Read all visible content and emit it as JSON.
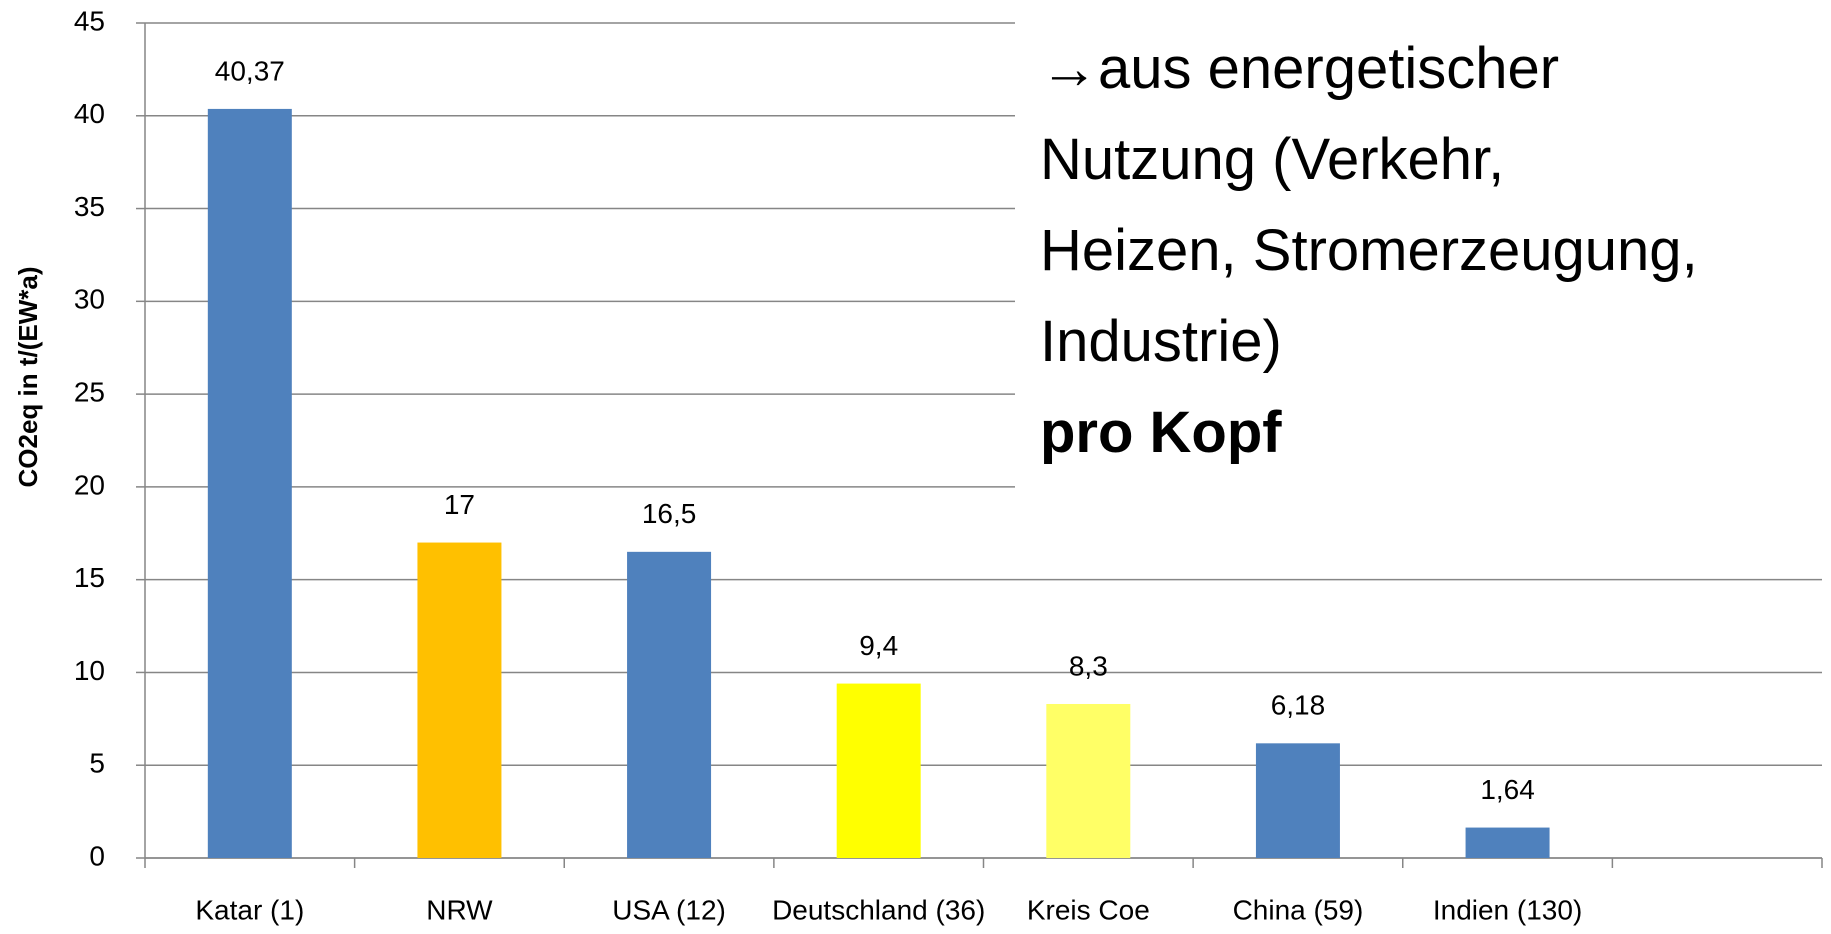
{
  "chart_data": {
    "type": "bar",
    "y_label": "CO2eq in t/(EW*a)",
    "categories": [
      "Katar (1)",
      "NRW",
      "USA (12)",
      "Deutschland (36)",
      "Kreis Coe",
      "China (59)",
      "Indien (130)",
      null
    ],
    "values": [
      40.37,
      17,
      16.5,
      9.4,
      8.3,
      6.18,
      1.64,
      null
    ],
    "value_labels": [
      "40,37",
      "17",
      "16,5",
      "9,4",
      "8,3",
      "6,18",
      "1,64",
      null
    ],
    "colors": [
      "#4f81bd",
      "#ffc000",
      "#4f81bd",
      "#ffff00",
      "#ffff66",
      "#4f81bd",
      "#4f81bd",
      null
    ],
    "ylim": [
      0,
      45
    ],
    "yticks": [
      0,
      5,
      10,
      15,
      20,
      25,
      30,
      35,
      40,
      45
    ],
    "grid": true,
    "annotation": [
      "→aus energetischer",
      "Nutzung (Verkehr,",
      "Heizen, Stromerzeugung,",
      "Industrie)"
    ],
    "annotation_bold": "pro Kopf"
  }
}
